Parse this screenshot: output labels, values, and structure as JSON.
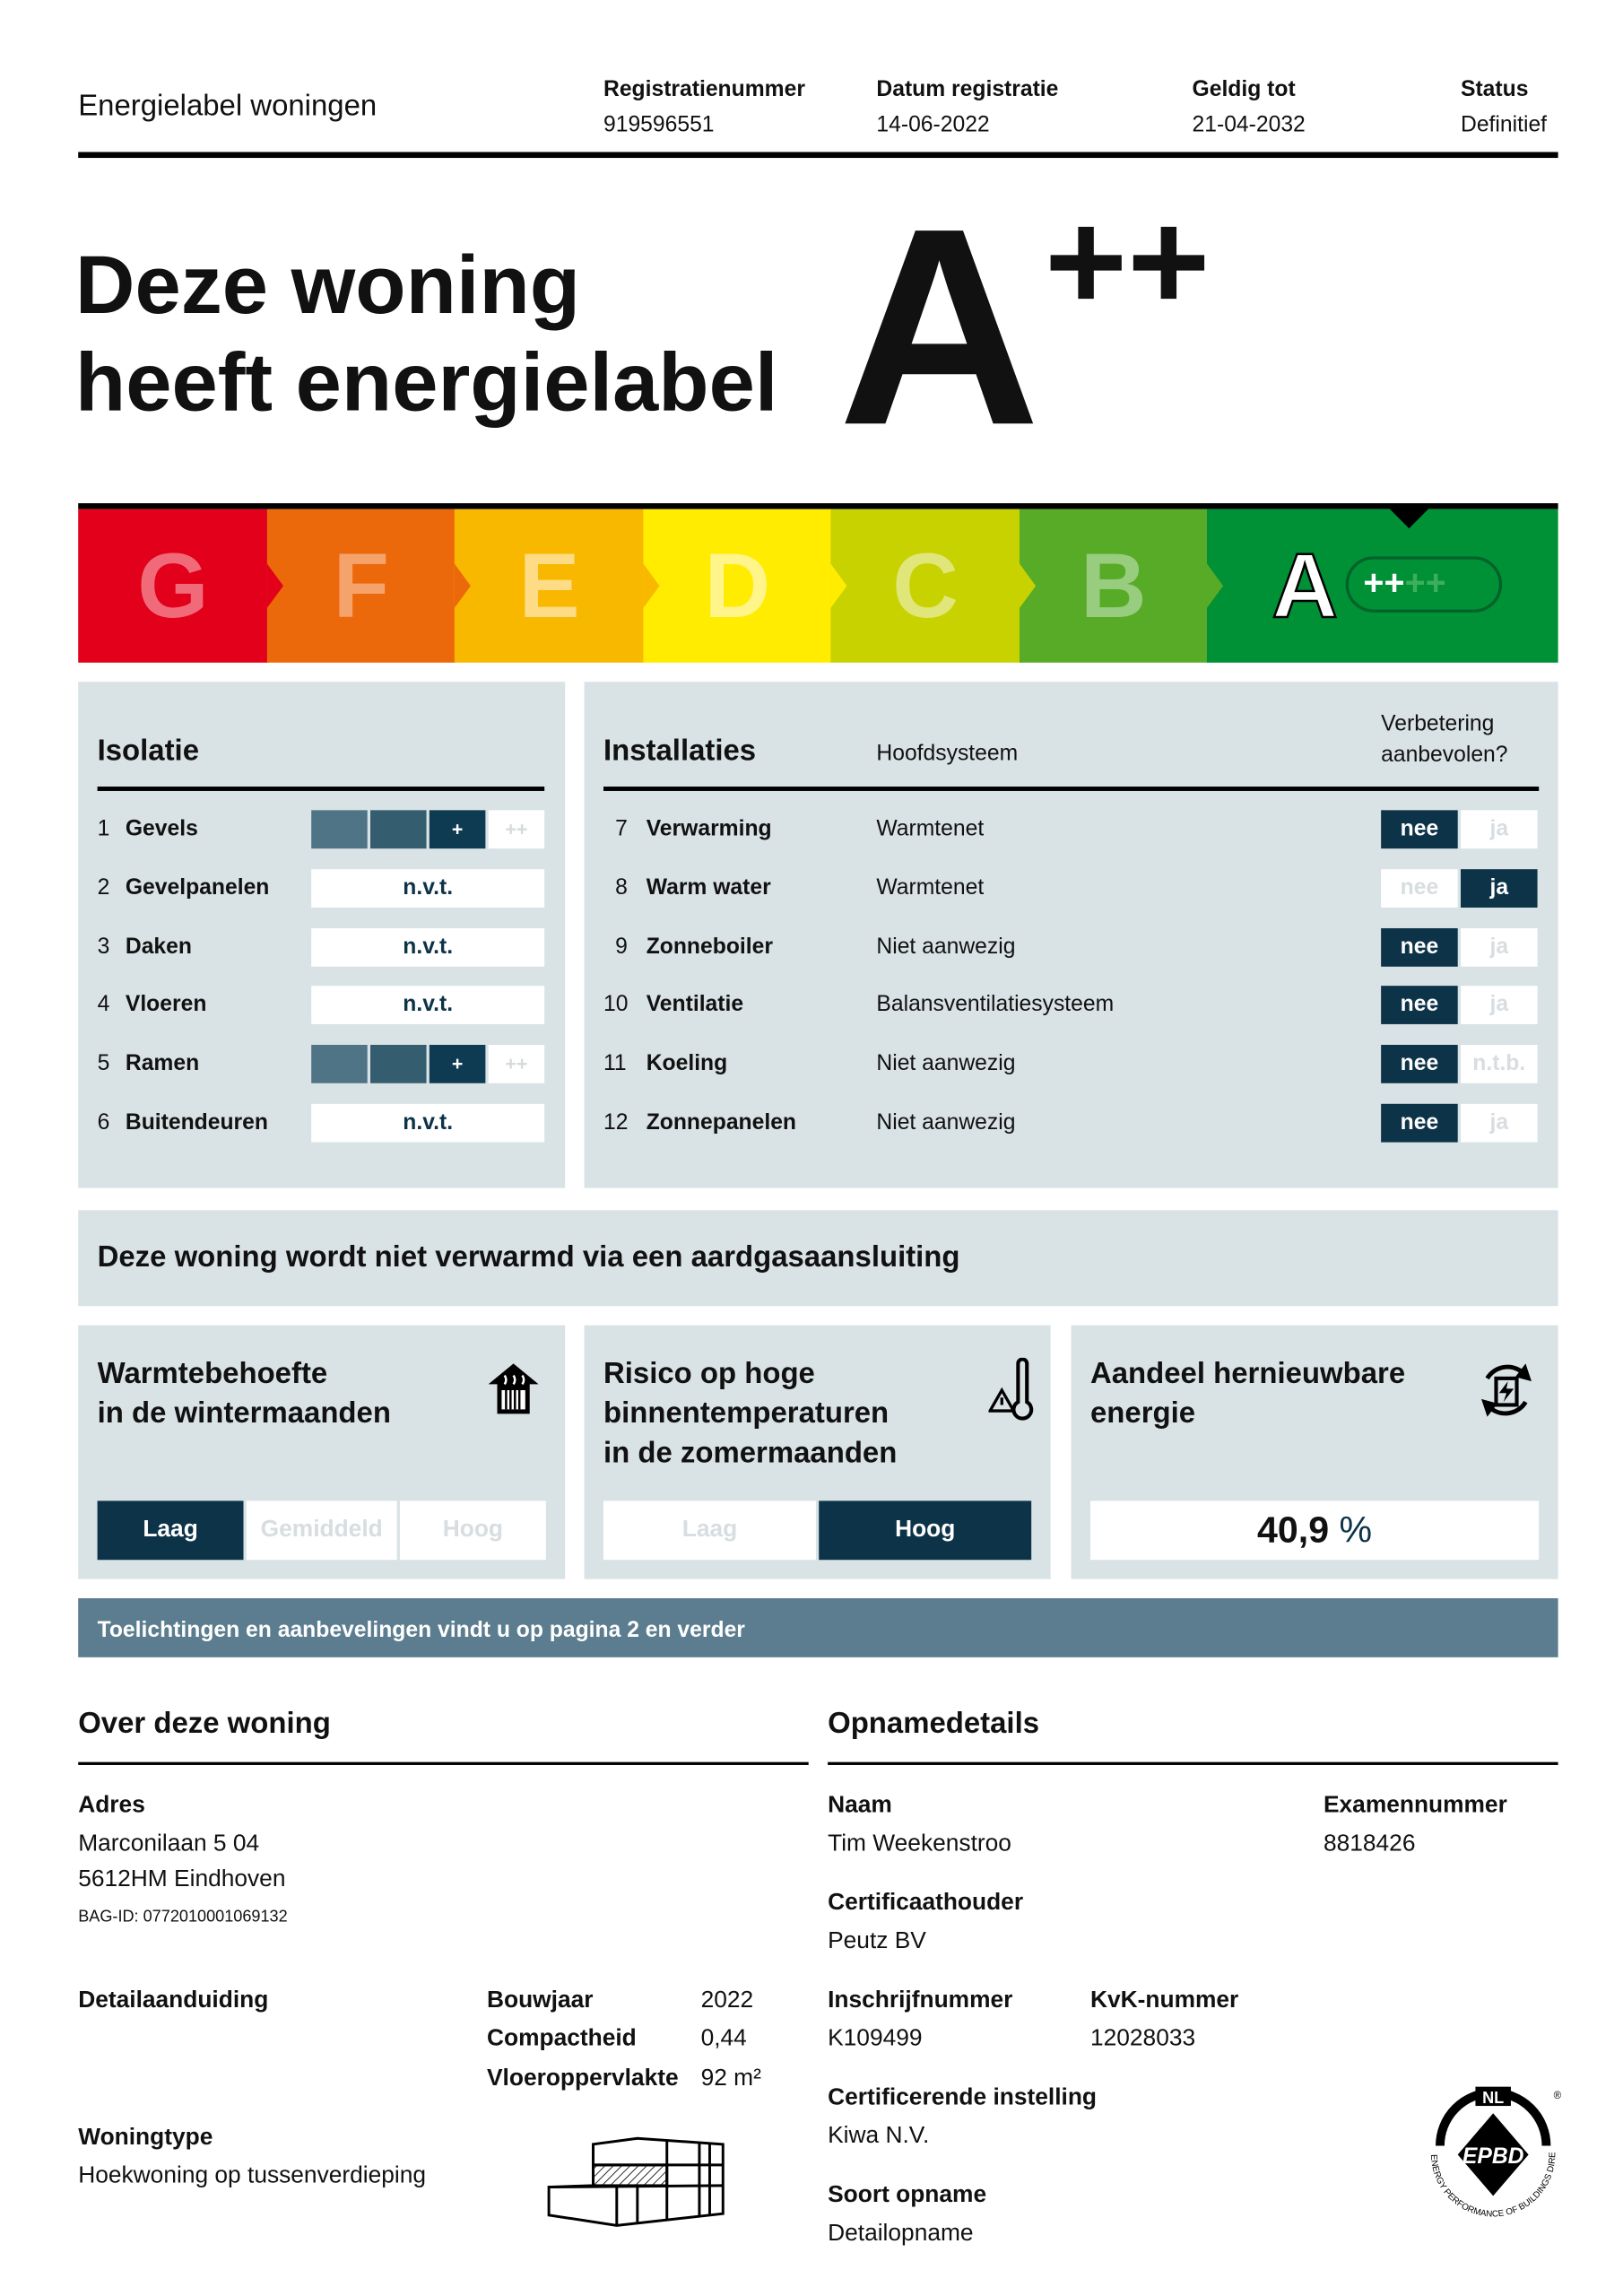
{
  "header": {
    "title": "Energielabel woningen",
    "fields": [
      {
        "label": "Registratienummer",
        "value": "919596551"
      },
      {
        "label": "Datum registratie",
        "value": "14-06-2022"
      },
      {
        "label": "Geldig tot",
        "value": "21-04-2032"
      },
      {
        "label": "Status",
        "value": "Definitief"
      }
    ]
  },
  "hero": {
    "line1": "Deze woning",
    "line2": "heeft energielabel",
    "label_letter": "A",
    "label_plus": "++"
  },
  "scale": {
    "classes": [
      {
        "letter": "G",
        "color": "#e2001a"
      },
      {
        "letter": "F",
        "color": "#eb690b"
      },
      {
        "letter": "E",
        "color": "#f9b800"
      },
      {
        "letter": "D",
        "color": "#ffec00"
      },
      {
        "letter": "C",
        "color": "#c8d200"
      },
      {
        "letter": "B",
        "color": "#58ab27"
      },
      {
        "letter": "A",
        "color": "#009036"
      }
    ],
    "selected": "A++",
    "plus_lit": "++",
    "plus_dim": "++"
  },
  "isolatie": {
    "title": "Isolatie",
    "rows": [
      {
        "num": "1",
        "label": "Gevels",
        "type": "level",
        "level": 3,
        "plus": "+",
        "plusplus": "++"
      },
      {
        "num": "2",
        "label": "Gevelpanelen",
        "type": "nvt",
        "text": "n.v.t."
      },
      {
        "num": "3",
        "label": "Daken",
        "type": "nvt",
        "text": "n.v.t."
      },
      {
        "num": "4",
        "label": "Vloeren",
        "type": "nvt",
        "text": "n.v.t."
      },
      {
        "num": "5",
        "label": "Ramen",
        "type": "level",
        "level": 3,
        "plus": "+",
        "plusplus": "++"
      },
      {
        "num": "6",
        "label": "Buitendeuren",
        "type": "nvt",
        "text": "n.v.t."
      }
    ]
  },
  "installaties": {
    "title": "Installaties",
    "col_system": "Hoofdsysteem",
    "col_improve_1": "Verbetering",
    "col_improve_2": "aanbevolen?",
    "rows": [
      {
        "num": "7",
        "label": "Verwarming",
        "system": "Warmtenet",
        "opt1": "nee",
        "opt2": "ja",
        "selected": "nee"
      },
      {
        "num": "8",
        "label": "Warm water",
        "system": "Warmtenet",
        "opt1": "nee",
        "opt2": "ja",
        "selected": "ja"
      },
      {
        "num": "9",
        "label": "Zonneboiler",
        "system": "Niet aanwezig",
        "opt1": "nee",
        "opt2": "ja",
        "selected": "nee"
      },
      {
        "num": "10",
        "label": "Ventilatie",
        "system": "Balansventilatiesysteem",
        "opt1": "nee",
        "opt2": "ja",
        "selected": "nee"
      },
      {
        "num": "11",
        "label": "Koeling",
        "system": "Niet aanwezig",
        "opt1": "nee",
        "opt2": "n.t.b.",
        "selected": "nee"
      },
      {
        "num": "12",
        "label": "Zonnepanelen",
        "system": "Niet aanwezig",
        "opt1": "nee",
        "opt2": "ja",
        "selected": "nee"
      }
    ]
  },
  "gas_banner": "Deze woning wordt niet verwarmd via een aardgasaansluiting",
  "cards": {
    "warmte": {
      "line1": "Warmtebehoefte",
      "line2": "in de wintermaanden",
      "icon": "house-heating-icon",
      "options": [
        "Laag",
        "Gemiddeld",
        "Hoog"
      ],
      "selected": "Laag"
    },
    "risico": {
      "line1": "Risico op hoge",
      "line2": "binnentemperaturen",
      "line3": "in de zomermaanden",
      "icon": "thermometer-warning-icon",
      "options": [
        "Laag",
        "Hoog"
      ],
      "selected": "Hoog"
    },
    "hernieuwbaar": {
      "line1": "Aandeel hernieuwbare",
      "line2": "energie",
      "icon": "renewable-cycle-icon",
      "value": "40,9",
      "unit": "%"
    }
  },
  "info_bar": "Toelichtingen en aanbevelingen vindt u op pagina 2 en verder",
  "woning": {
    "title": "Over deze woning",
    "adres_label": "Adres",
    "adres1": "Marconilaan 5 04",
    "adres2": "5612HM Eindhoven",
    "bag": "BAG-ID: 0772010001069132",
    "detail_label": "Detailaanduiding",
    "bouwjaar_label": "Bouwjaar",
    "bouwjaar": "2022",
    "compact_label": "Compactheid",
    "compact": "0,44",
    "vloer_label": "Vloeroppervlakte",
    "vloer": "92 m²",
    "type_label": "Woningtype",
    "type": "Hoekwoning op tussenverdieping"
  },
  "opname": {
    "title": "Opnamedetails",
    "naam_label": "Naam",
    "naam": "Tim Weekenstroo",
    "exam_label": "Examennummer",
    "exam": "8818426",
    "cert_label": "Certificaathouder",
    "cert": "Peutz BV",
    "inschr_label": "Inschrijfnummer",
    "inschr": "K109499",
    "kvk_label": "KvK-nummer",
    "kvk": "12028033",
    "inst_label": "Certificerende instelling",
    "inst": "Kiwa N.V.",
    "soort_label": "Soort opname",
    "soort": "Detailopname"
  },
  "logo": {
    "text": "EPBD",
    "country": "NL",
    "ring": "ENERGY PERFORMANCE OF BUILDINGS DIRECTIVE"
  },
  "colors": {
    "navy": "#0d3349",
    "panel": "#d9e2e5",
    "info_bar": "#5b7d8f"
  }
}
